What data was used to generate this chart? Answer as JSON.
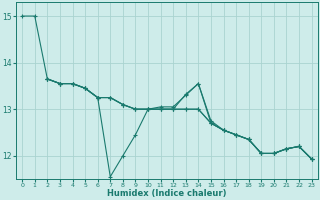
{
  "xlabel": "Humidex (Indice chaleur)",
  "xlim": [
    -0.5,
    23.5
  ],
  "ylim": [
    11.5,
    15.3
  ],
  "yticks": [
    12,
    13,
    14,
    15
  ],
  "xticks": [
    0,
    1,
    2,
    3,
    4,
    5,
    6,
    7,
    8,
    9,
    10,
    11,
    12,
    13,
    14,
    15,
    16,
    17,
    18,
    19,
    20,
    21,
    22,
    23
  ],
  "bg_color": "#ceecea",
  "grid_color": "#aad4d0",
  "line_color": "#1a7a6e",
  "lines": [
    {
      "x": [
        0,
        1,
        2,
        3,
        4,
        5,
        6,
        7,
        8,
        9,
        10,
        11,
        12,
        13,
        14,
        15,
        16,
        17,
        18,
        19,
        20,
        21,
        22,
        23
      ],
      "y": [
        15.0,
        15.0,
        13.65,
        13.55,
        13.55,
        13.45,
        13.25,
        13.25,
        13.1,
        13.0,
        13.0,
        13.0,
        13.0,
        13.0,
        13.0,
        12.7,
        12.55,
        12.45,
        12.35,
        12.05,
        12.05,
        12.15,
        12.2,
        11.93
      ]
    },
    {
      "x": [
        2,
        3,
        4,
        5,
        6,
        7,
        8,
        9,
        10,
        11,
        12,
        13,
        14,
        15,
        16,
        17,
        18,
        19,
        20,
        21,
        22,
        23
      ],
      "y": [
        13.65,
        13.55,
        13.55,
        13.45,
        13.25,
        11.55,
        12.0,
        12.45,
        13.0,
        13.05,
        13.05,
        13.3,
        13.55,
        12.7,
        12.55,
        12.45,
        12.35,
        12.05,
        12.05,
        12.15,
        12.2,
        11.93
      ]
    },
    {
      "x": [
        2,
        3,
        4,
        5,
        6,
        7,
        8,
        9,
        10,
        11,
        12,
        13,
        14,
        15,
        16,
        17,
        18,
        19,
        20,
        21,
        22,
        23
      ],
      "y": [
        13.65,
        13.55,
        13.55,
        13.45,
        13.25,
        13.25,
        13.1,
        13.0,
        13.0,
        13.0,
        13.0,
        13.32,
        13.55,
        12.75,
        12.55,
        12.45,
        12.35,
        12.05,
        12.05,
        12.15,
        12.2,
        11.93
      ]
    },
    {
      "x": [
        2,
        3,
        4,
        5,
        6,
        7,
        8,
        9,
        10,
        11,
        12,
        13,
        14,
        15,
        16,
        17,
        18,
        19,
        20,
        21,
        22,
        23
      ],
      "y": [
        13.65,
        13.55,
        13.55,
        13.45,
        13.25,
        13.25,
        13.1,
        13.0,
        13.0,
        13.0,
        13.0,
        13.0,
        13.0,
        12.7,
        12.55,
        12.45,
        12.35,
        12.05,
        12.05,
        12.15,
        12.2,
        11.93
      ]
    }
  ]
}
